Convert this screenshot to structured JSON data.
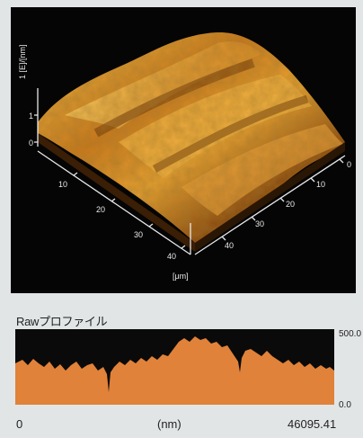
{
  "afm_image": {
    "z_axis_label": "1 [E]/[nm]",
    "z_ticks": [
      "1",
      "0"
    ],
    "x_ticks": [
      "10",
      "20",
      "30",
      "40"
    ],
    "y_ticks": [
      "0",
      "10",
      "20",
      "30",
      "40"
    ],
    "unit_label": "[μm]"
  },
  "profile": {
    "title": "Rawプロファイル",
    "y_max_label": "500.0",
    "y_min_label": "0.0",
    "x_start_label": "0",
    "x_unit_label": "(nm)",
    "x_end_label": "46095.41",
    "fill_color": "#e0823a",
    "background_color": "#0a0a0a"
  }
}
